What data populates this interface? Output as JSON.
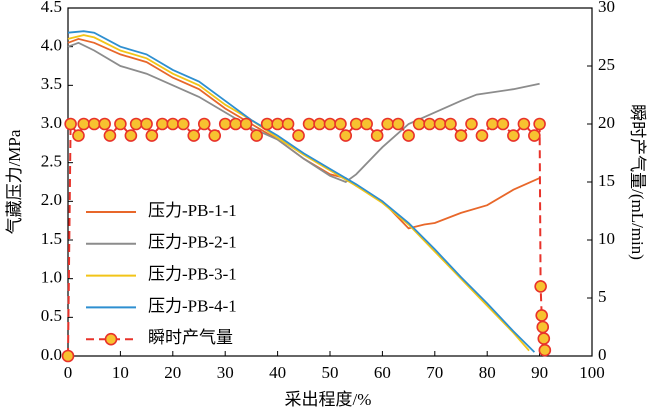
{
  "chart_data": {
    "type": "line",
    "xlabel": "采出程度/%",
    "ylabel": "气藏压力/MPa",
    "y2label": "瞬时产气量/(mL/min)",
    "xlim": [
      0,
      100
    ],
    "xticks": [
      0,
      10,
      20,
      30,
      40,
      50,
      60,
      70,
      80,
      90,
      100
    ],
    "ylim": [
      0,
      4.5
    ],
    "yticks": [
      {
        "value": 0,
        "label": "0.0"
      },
      0.5,
      {
        "value": 1,
        "label": "1.0"
      },
      1.5,
      {
        "value": 2,
        "label": "2.0"
      },
      2.5,
      {
        "value": 3,
        "label": "3.0"
      },
      3.5,
      {
        "value": 4,
        "label": "4.0"
      },
      4.5
    ],
    "y2lim": [
      0,
      30
    ],
    "y2ticks": [
      0,
      5,
      10,
      15,
      20,
      25,
      30
    ],
    "series": [
      {
        "name": "压力-PB-1-1",
        "color": "#e8672a",
        "x": [
          0,
          2,
          5,
          10,
          15,
          20,
          25,
          30,
          35,
          40,
          45,
          50,
          53,
          55,
          60,
          65,
          68,
          70,
          75,
          80,
          85,
          90
        ],
        "values": [
          4.05,
          4.1,
          4.05,
          3.9,
          3.8,
          3.6,
          3.45,
          3.2,
          3.0,
          2.8,
          2.55,
          2.35,
          2.3,
          2.2,
          2.0,
          1.65,
          1.7,
          1.72,
          1.85,
          1.95,
          2.15,
          2.3
        ]
      },
      {
        "name": "压力-PB-2-1",
        "color": "#8c8c8c",
        "x": [
          0,
          2,
          5,
          10,
          15,
          20,
          25,
          30,
          35,
          40,
          45,
          50,
          53,
          55,
          60,
          65,
          70,
          75,
          78,
          85,
          90
        ],
        "values": [
          4.0,
          4.05,
          3.95,
          3.75,
          3.65,
          3.5,
          3.35,
          3.15,
          2.95,
          2.8,
          2.55,
          2.33,
          2.25,
          2.35,
          2.7,
          3.0,
          3.15,
          3.3,
          3.38,
          3.45,
          3.52
        ]
      },
      {
        "name": "压力-PB-3-1",
        "color": "#f2c418",
        "x": [
          0,
          3,
          5,
          10,
          15,
          20,
          25,
          30,
          35,
          40,
          45,
          50,
          55,
          60,
          65,
          70,
          75,
          80,
          85,
          88
        ],
        "values": [
          4.1,
          4.15,
          4.12,
          3.95,
          3.85,
          3.65,
          3.5,
          3.25,
          3.05,
          2.82,
          2.6,
          2.4,
          2.2,
          1.98,
          1.7,
          1.35,
          1.0,
          0.65,
          0.3,
          0.07
        ]
      },
      {
        "name": "压力-PB-4-1",
        "color": "#2e8fd0",
        "x": [
          0,
          3,
          5,
          10,
          15,
          20,
          25,
          30,
          35,
          40,
          45,
          50,
          55,
          60,
          65,
          70,
          75,
          80,
          85,
          89
        ],
        "values": [
          4.18,
          4.2,
          4.18,
          4.0,
          3.9,
          3.7,
          3.55,
          3.3,
          3.05,
          2.85,
          2.62,
          2.42,
          2.22,
          2.0,
          1.72,
          1.38,
          1.02,
          0.68,
          0.32,
          0.05
        ]
      },
      {
        "name": "瞬时产气量",
        "color": "#e8322a",
        "marker_fill": "#f7c230",
        "axis": "y2",
        "dashed": true,
        "x": [
          0,
          0.5,
          2,
          3,
          5,
          7,
          8,
          10,
          12,
          13,
          15,
          16,
          18,
          20,
          22,
          24,
          26,
          28,
          30,
          32,
          34,
          36,
          38,
          40,
          42,
          44,
          46,
          48,
          50,
          52,
          53,
          55,
          57,
          59,
          61,
          63,
          65,
          67,
          69,
          71,
          73,
          75,
          77,
          79,
          81,
          83,
          85,
          87,
          89,
          90,
          90.2,
          90.4,
          90.6,
          90.8,
          91
        ],
        "values": [
          0,
          20,
          19,
          20,
          20,
          20,
          19,
          20,
          19,
          20,
          20,
          19,
          20,
          20,
          20,
          19,
          20,
          19,
          20,
          20,
          20,
          19,
          20,
          20,
          20,
          19,
          20,
          20,
          20,
          20,
          19,
          20,
          20,
          19,
          20,
          20,
          19,
          20,
          20,
          20,
          20,
          19,
          20,
          19,
          20,
          20,
          19,
          20,
          19,
          20,
          6,
          3.5,
          2.5,
          1.5,
          0.5
        ]
      }
    ]
  }
}
